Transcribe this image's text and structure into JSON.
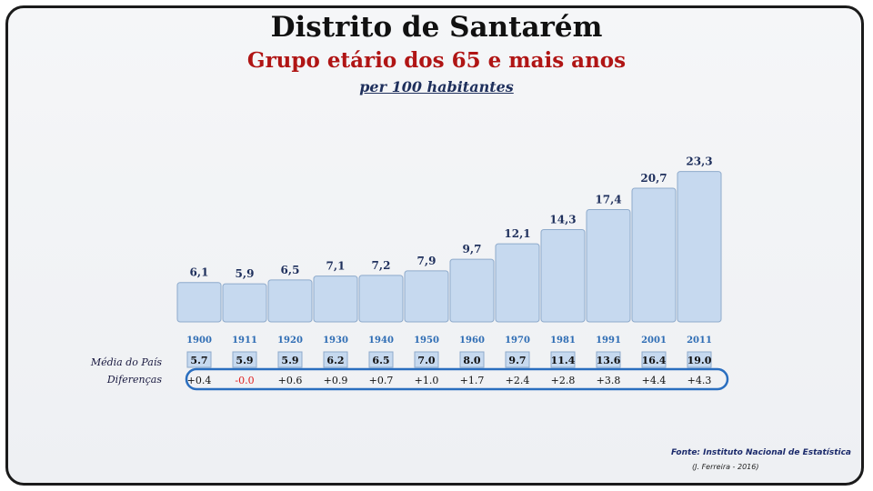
{
  "chart_data": {
    "type": "bar",
    "title": "Distrito de Santarém",
    "subtitle": "Grupo etário dos 65 e mais anos",
    "subtitle2": "per 100 habitantes",
    "categories": [
      "1900",
      "1911",
      "1920",
      "1930",
      "1940",
      "1950",
      "1960",
      "1970",
      "1981",
      "1991",
      "2001",
      "2011"
    ],
    "values": [
      6.1,
      5.9,
      6.5,
      7.1,
      7.2,
      7.9,
      9.7,
      12.1,
      14.3,
      17.4,
      20.7,
      23.3
    ],
    "value_labels": [
      "6,1",
      "5,9",
      "6,5",
      "7,1",
      "7,2",
      "7,9",
      "9,7",
      "12,1",
      "14,3",
      "17,4",
      "20,7",
      "23,3"
    ],
    "national_label": "Média do País",
    "national_values": [
      "5.7",
      "5.9",
      "5.9",
      "6.2",
      "6.5",
      "7.0",
      "8.0",
      "9.7",
      "11.4",
      "13.6",
      "16.4",
      "19.0"
    ],
    "diff_label": "Diferenças",
    "differences": [
      "+0.4",
      "-0.0",
      "+0.6",
      "+0.9",
      "+0.7",
      "+1.0",
      "+1.7",
      "+2.4",
      "+2.8",
      "+3.8",
      "+4.4",
      "+4.3"
    ],
    "grid": false,
    "legend": "none",
    "colors": {
      "bar_fill": "#c6d9ef",
      "bar_stroke": "#8eaacb",
      "value_label": "#1e2f5c",
      "year_label": "#2e6db4",
      "negative": "#e02020",
      "oval": "#2a6ebf"
    }
  },
  "source": "Fonte: Instituto Nacional de Estatística",
  "credit": "(J. Ferreira - 2016)"
}
